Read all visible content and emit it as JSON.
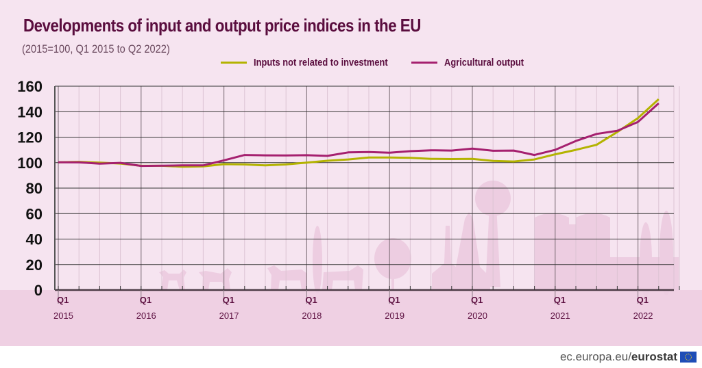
{
  "title": "Developments of input and output price indices in the EU",
  "subtitle": "(2015=100, Q1 2015 to Q2 2022)",
  "legend": [
    {
      "label": "Inputs not related to investment",
      "color": "#b3b300"
    },
    {
      "label": "Agricultural output",
      "color": "#a5206f"
    }
  ],
  "footer": {
    "domain": "ec.europa.eu/",
    "brand": "eurostat"
  },
  "colors": {
    "inputs": "#b3b300",
    "output": "#a5206f",
    "title": "#5a0d3e",
    "background": "#f6e4f0"
  },
  "chart_data": {
    "type": "line",
    "title": "Developments of input and output price indices in the EU",
    "subtitle": "(2015=100, Q1 2015 to Q2 2022)",
    "xlabel": "",
    "ylabel": "",
    "ylim": [
      0,
      160
    ],
    "yticks": [
      0,
      20,
      40,
      60,
      80,
      100,
      120,
      140,
      160
    ],
    "grid": true,
    "legend_position": "top-right",
    "x_major_labels": [
      {
        "quarter": "Q1",
        "year": "2015"
      },
      {
        "quarter": "Q1",
        "year": "2016"
      },
      {
        "quarter": "Q1",
        "year": "2017"
      },
      {
        "quarter": "Q1",
        "year": "2018"
      },
      {
        "quarter": "Q1",
        "year": "2019"
      },
      {
        "quarter": "Q1",
        "year": "2020"
      },
      {
        "quarter": "Q1",
        "year": "2021"
      },
      {
        "quarter": "Q1",
        "year": "2022"
      }
    ],
    "x": [
      "2015Q1",
      "2015Q2",
      "2015Q3",
      "2015Q4",
      "2016Q1",
      "2016Q2",
      "2016Q3",
      "2016Q4",
      "2017Q1",
      "2017Q2",
      "2017Q3",
      "2017Q4",
      "2018Q1",
      "2018Q2",
      "2018Q3",
      "2018Q4",
      "2019Q1",
      "2019Q2",
      "2019Q3",
      "2019Q4",
      "2020Q1",
      "2020Q2",
      "2020Q3",
      "2020Q4",
      "2021Q1",
      "2021Q2",
      "2021Q3",
      "2021Q4",
      "2022Q1",
      "2022Q2"
    ],
    "series": [
      {
        "name": "Inputs not related to investment",
        "values": [
          100.3,
          100.6,
          100.0,
          99.3,
          97.5,
          97.5,
          96.8,
          97.0,
          98.8,
          98.6,
          97.8,
          98.6,
          100.0,
          101.5,
          102.5,
          104.0,
          104.0,
          103.8,
          103.0,
          102.8,
          103.0,
          101.3,
          100.9,
          102.5,
          106.5,
          110.0,
          114.0,
          124.0,
          135.0,
          149.8
        ]
      },
      {
        "name": "Agricultural output",
        "values": [
          100.3,
          100.2,
          99.2,
          99.8,
          97.4,
          97.6,
          97.8,
          97.8,
          101.8,
          106.0,
          105.7,
          105.6,
          105.8,
          105.3,
          108.0,
          108.3,
          107.8,
          109.0,
          109.7,
          109.5,
          111.0,
          109.3,
          109.5,
          106.0,
          110.0,
          117.0,
          122.5,
          125.0,
          132.0,
          146.6
        ]
      }
    ]
  }
}
